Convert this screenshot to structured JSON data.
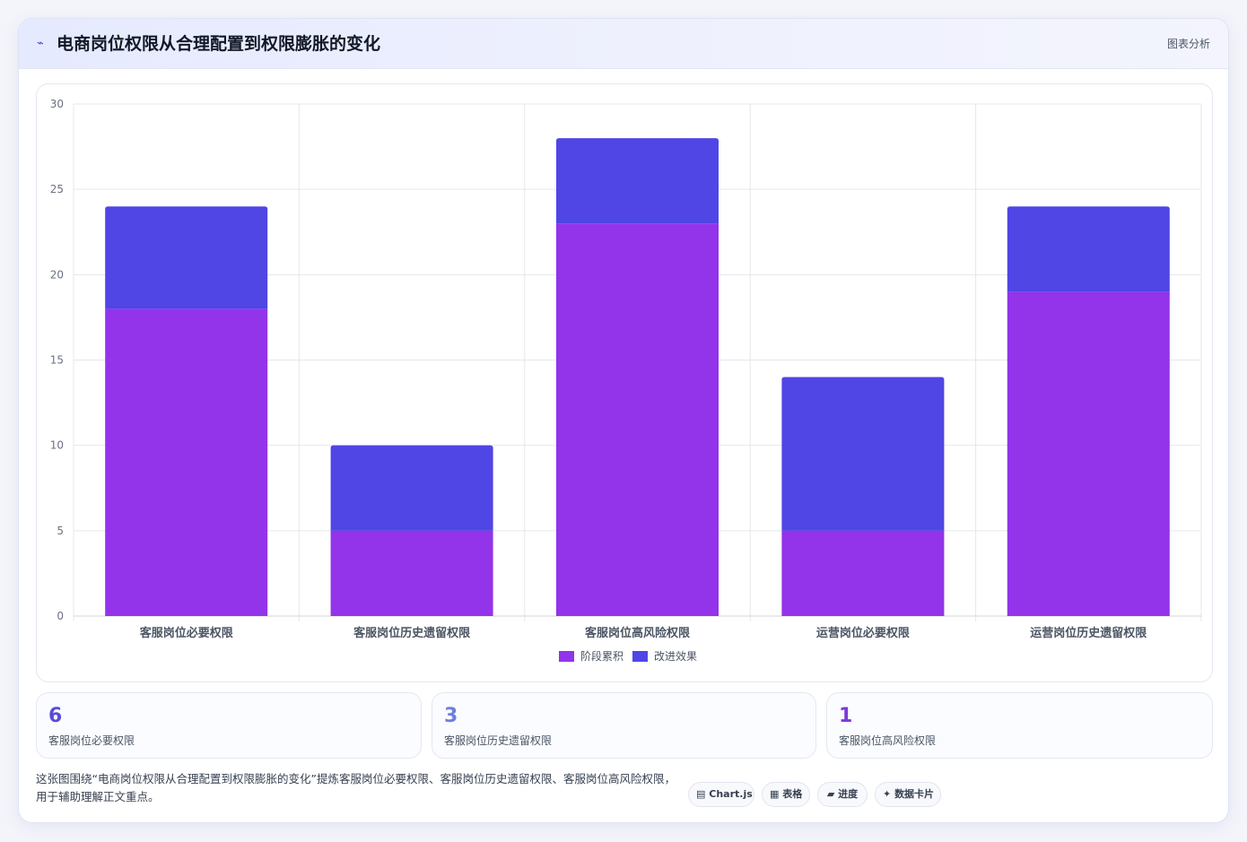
{
  "header": {
    "icon": "⌁",
    "title": "电商岗位权限从合理配置到权限膨胀的变化",
    "tag": "图表分析"
  },
  "colors": {
    "accent_purple": "#9333ea",
    "accent_indigo": "#4f46e5",
    "stat_blue": "#5b4bd8",
    "stat_light": "#6f7fe0",
    "stat_violet": "#7e3ad6"
  },
  "chart_data": {
    "type": "bar",
    "stacked": true,
    "categories": [
      "客服岗位必要权限",
      "客服岗位历史遗留权限",
      "客服岗位高风险权限",
      "运营岗位必要权限",
      "运营岗位历史遗留权限"
    ],
    "series": [
      {
        "name": "阶段累积",
        "color": "#9333ea",
        "values": [
          18,
          5,
          23,
          5,
          19
        ]
      },
      {
        "name": "改进效果",
        "color": "#4f46e5",
        "values": [
          6,
          5,
          5,
          9,
          5
        ]
      }
    ],
    "ylim": [
      0,
      30
    ],
    "yticks": [
      0,
      5,
      10,
      15,
      20,
      25,
      30
    ],
    "title": "",
    "xlabel": "",
    "ylabel": "",
    "grid": true,
    "legend": "bottom-center"
  },
  "stats": [
    {
      "value": "6",
      "label": "客服岗位必要权限"
    },
    {
      "value": "3",
      "label": "客服岗位历史遗留权限"
    },
    {
      "value": "1",
      "label": "客服岗位高风险权限"
    }
  ],
  "footer": {
    "text": "这张图围绕“电商岗位权限从合理配置到权限膨胀的变化”提炼客服岗位必要权限、客服岗位历史遗留权限、客服岗位高风险权限，用于辅助理解正文重点。"
  },
  "pills": [
    {
      "icon": "▤",
      "label": "Chart.js"
    },
    {
      "icon": "▦",
      "label": "表格"
    },
    {
      "icon": "▰",
      "label": "进度"
    },
    {
      "icon": "✦",
      "label": "数据卡片"
    }
  ]
}
